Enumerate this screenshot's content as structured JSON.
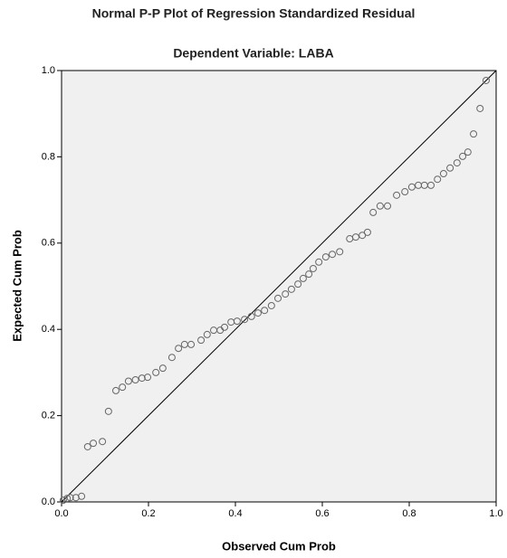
{
  "chart_data": {
    "type": "scatter",
    "title": "Normal P-P Plot of Regression Standardized Residual",
    "subtitle": "Dependent Variable: LABA",
    "x_label": "Observed Cum Prob",
    "y_label": "Expected Cum Prob",
    "x": [
      0.004,
      0.013,
      0.02,
      0.033,
      0.046,
      0.06,
      0.073,
      0.094,
      0.108,
      0.125,
      0.14,
      0.154,
      0.17,
      0.185,
      0.198,
      0.217,
      0.233,
      0.254,
      0.269,
      0.283,
      0.298,
      0.321,
      0.335,
      0.35,
      0.365,
      0.375,
      0.39,
      0.404,
      0.421,
      0.437,
      0.452,
      0.467,
      0.483,
      0.498,
      0.515,
      0.529,
      0.544,
      0.556,
      0.569,
      0.579,
      0.592,
      0.608,
      0.623,
      0.64,
      0.663,
      0.677,
      0.692,
      0.704,
      0.717,
      0.733,
      0.75,
      0.771,
      0.79,
      0.806,
      0.821,
      0.835,
      0.85,
      0.865,
      0.879,
      0.894,
      0.91,
      0.923,
      0.935,
      0.948,
      0.963,
      0.977
    ],
    "values": [
      0.004,
      0.008,
      0.01,
      0.01,
      0.013,
      0.128,
      0.136,
      0.14,
      0.21,
      0.258,
      0.266,
      0.28,
      0.283,
      0.287,
      0.289,
      0.3,
      0.31,
      0.335,
      0.356,
      0.365,
      0.365,
      0.375,
      0.388,
      0.398,
      0.398,
      0.405,
      0.417,
      0.419,
      0.423,
      0.43,
      0.438,
      0.444,
      0.455,
      0.472,
      0.482,
      0.493,
      0.505,
      0.518,
      0.528,
      0.541,
      0.556,
      0.568,
      0.574,
      0.58,
      0.61,
      0.614,
      0.618,
      0.625,
      0.671,
      0.686,
      0.686,
      0.711,
      0.719,
      0.73,
      0.734,
      0.734,
      0.734,
      0.748,
      0.761,
      0.774,
      0.786,
      0.801,
      0.811,
      0.853,
      0.912,
      0.977
    ],
    "color": "#666666",
    "xlim": [
      0,
      1
    ],
    "ylim": [
      0,
      1
    ],
    "xticks": [
      {
        "value": 0,
        "label": "0.0"
      },
      0.2,
      0.4,
      0.6,
      0.8,
      {
        "value": 1,
        "label": "1.0"
      }
    ],
    "yticks": [
      {
        "value": 0,
        "label": "0.0"
      },
      0.2,
      0.4,
      0.6,
      0.8,
      {
        "value": 1,
        "label": "1.0"
      }
    ]
  }
}
